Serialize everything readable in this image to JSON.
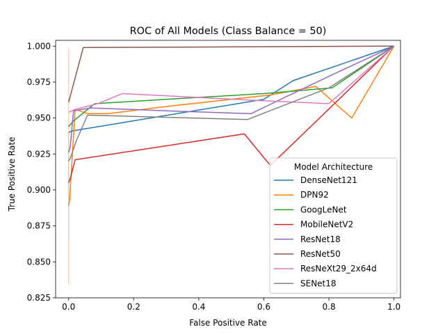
{
  "chart_data": {
    "type": "line",
    "title": "ROC of All Models (Class Balance = 50)",
    "xlabel": "False Positive Rate",
    "ylabel": "True Positive Rate",
    "xlim": [
      -0.04,
      1.02
    ],
    "ylim": [
      0.825,
      1.004
    ],
    "xticks": [
      {
        "v": 0.0,
        "label": "0.0"
      },
      {
        "v": 0.2,
        "label": "0.2"
      },
      {
        "v": 0.4,
        "label": "0.4"
      },
      {
        "v": 0.6,
        "label": "0.6"
      },
      {
        "v": 0.8,
        "label": "0.8"
      },
      {
        "v": 1.0,
        "label": "1.0"
      }
    ],
    "yticks": [
      {
        "v": 0.825,
        "label": "0.825"
      },
      {
        "v": 0.85,
        "label": "0.850"
      },
      {
        "v": 0.875,
        "label": "0.875"
      },
      {
        "v": 0.9,
        "label": "0.900"
      },
      {
        "v": 0.925,
        "label": "0.925"
      },
      {
        "v": 0.95,
        "label": "0.950"
      },
      {
        "v": 0.975,
        "label": "0.975"
      },
      {
        "v": 1.0,
        "label": "1.000"
      }
    ],
    "grid": false,
    "legend": {
      "title": "Model Architecture",
      "placement": "lower-right"
    },
    "faint_segments": [
      {
        "x": 0.0,
        "y0": 0.834,
        "y1": 0.999,
        "color": "#f5c9a5"
      },
      {
        "x": 0.0,
        "y0": 0.866,
        "y1": 0.94,
        "color": "#c8c8c8"
      }
    ],
    "series": [
      {
        "name": "DenseNet121",
        "color": "#1f77b4",
        "x": [
          0.0,
          0.0,
          0.01,
          0.6,
          0.69,
          1.0
        ],
        "y": [
          0.94,
          0.94,
          0.941,
          0.963,
          0.976,
          1.0
        ]
      },
      {
        "name": "DPN92",
        "color": "#ff7f0e",
        "x": [
          0.0,
          0.0,
          0.003,
          0.02,
          0.06,
          0.12,
          0.3,
          0.62,
          0.76,
          0.87,
          1.0
        ],
        "y": [
          0.889,
          0.889,
          0.893,
          0.956,
          0.953,
          0.953,
          0.958,
          0.966,
          0.972,
          0.95,
          1.0
        ]
      },
      {
        "name": "GoogLeNet",
        "color": "#2ca02c",
        "x": [
          0.0,
          0.0,
          0.015,
          0.08,
          0.3,
          0.6,
          0.81,
          1.0
        ],
        "y": [
          0.944,
          0.944,
          0.948,
          0.96,
          0.963,
          0.967,
          0.971,
          1.0
        ]
      },
      {
        "name": "MobileNetV2",
        "color": "#d62728",
        "x": [
          0.0,
          0.0,
          0.005,
          0.02,
          0.54,
          0.62,
          1.0
        ],
        "y": [
          0.905,
          0.905,
          0.908,
          0.921,
          0.939,
          0.917,
          1.0
        ]
      },
      {
        "name": "ResNet18",
        "color": "#9467bd",
        "x": [
          0.0,
          0.0,
          0.005,
          0.015,
          0.07,
          0.3,
          0.56,
          0.8,
          1.0
        ],
        "y": [
          0.926,
          0.926,
          0.93,
          0.955,
          0.957,
          0.955,
          0.953,
          0.979,
          1.0
        ]
      },
      {
        "name": "ResNet50",
        "color": "#8c564b",
        "x": [
          0.0,
          0.0,
          0.045,
          1.0
        ],
        "y": [
          0.961,
          0.961,
          0.999,
          1.0
        ]
      },
      {
        "name": "ResNeXt29_2x64d",
        "color": "#e377c2",
        "x": [
          0.0,
          0.0,
          0.02,
          0.09,
          0.165,
          0.6,
          0.8,
          1.0
        ],
        "y": [
          0.954,
          0.954,
          0.956,
          0.96,
          0.967,
          0.962,
          0.96,
          1.0
        ]
      },
      {
        "name": "SENet18",
        "color": "#7f7f7f",
        "x": [
          0.0,
          0.0,
          0.005,
          0.025,
          0.058,
          0.55,
          0.8,
          1.0
        ],
        "y": [
          0.92,
          0.92,
          0.922,
          0.935,
          0.952,
          0.949,
          0.971,
          1.0
        ]
      }
    ]
  }
}
